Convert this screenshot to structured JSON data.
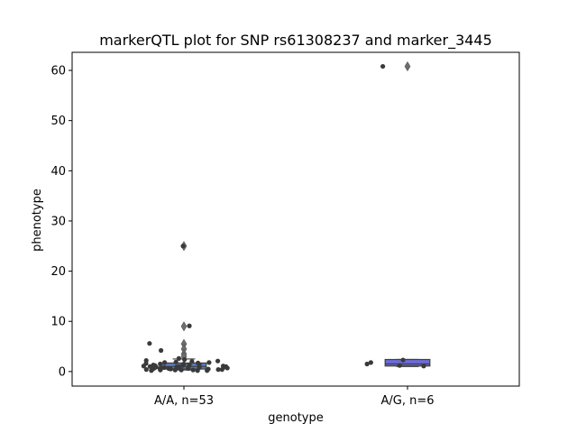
{
  "chart_data": {
    "type": "box",
    "title": "markerQTL plot for SNP rs61308237 and marker_3445",
    "xlabel": "genotype",
    "ylabel": "phenotype",
    "categories": [
      "A/A, n=53",
      "A/G, n=6"
    ],
    "ylim": [
      -2.9,
      63.6
    ],
    "yticks": [
      0,
      10,
      20,
      30,
      40,
      50,
      60
    ],
    "ytick_labels": [
      "0",
      "10",
      "20",
      "30",
      "40",
      "50",
      "60"
    ],
    "grid": false,
    "boxes": [
      {
        "category": "A/A, n=53",
        "q1": 0.5,
        "median": 1.0,
        "q3": 1.7,
        "whisker_low": 0.3,
        "whisker_high": 2.5,
        "outliers": [
          25.0,
          9.0,
          5.5,
          4.5,
          3.5,
          3.0
        ],
        "color": "#5a7ab8"
      },
      {
        "category": "A/G, n=6",
        "q1": 1.1,
        "median": 1.5,
        "q3": 2.4,
        "whisker_low": 1.0,
        "whisker_high": 2.4,
        "outliers": [
          60.8
        ],
        "color": "#6c6cd8"
      }
    ],
    "strip_points": [
      {
        "category": "A/A, n=53",
        "values": [
          25.0,
          9.1,
          5.6,
          4.2,
          2.6,
          2.4,
          2.2,
          2.1,
          2.0,
          1.9,
          1.8,
          1.8,
          1.7,
          1.6,
          1.5,
          1.5,
          1.4,
          1.3,
          1.3,
          1.2,
          1.2,
          1.1,
          1.1,
          1.0,
          1.0,
          1.0,
          0.9,
          0.9,
          0.9,
          0.8,
          0.8,
          0.8,
          0.7,
          0.7,
          0.7,
          0.6,
          0.6,
          0.6,
          0.5,
          0.5,
          0.5,
          0.5,
          0.4,
          0.4,
          0.4,
          0.4,
          0.3,
          0.3,
          0.3,
          0.3,
          0.2,
          0.2,
          0.2
        ]
      },
      {
        "category": "A/G, n=6",
        "values": [
          60.8,
          2.3,
          1.8,
          1.5,
          1.2,
          1.1
        ]
      }
    ],
    "colors": {
      "point": "#3a3a3a",
      "box_edge": "#3f3f3f",
      "outlier": "#6e6e6e"
    }
  }
}
